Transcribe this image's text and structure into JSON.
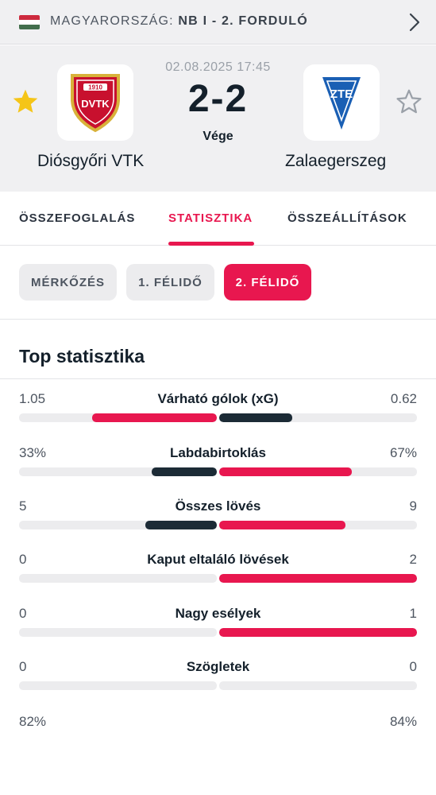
{
  "league": {
    "country": "MAGYARORSZÁG:",
    "competition": "NB I - 2. FORDULÓ",
    "flag_colors": [
      "#cd2a3e",
      "#ffffff",
      "#436f4d"
    ]
  },
  "match": {
    "datetime": "02.08.2025 17:45",
    "score": "2-2",
    "status": "Vége",
    "home": {
      "name": "Diósgyőri VTK",
      "crest_year": "1910",
      "crest_text": "DVTK",
      "favorite": true
    },
    "away": {
      "name": "Zalaegerszeg",
      "crest_text": "ZTE",
      "favorite": false
    }
  },
  "tabs": [
    {
      "label": "ÖSSZEFOGLALÁS",
      "active": false
    },
    {
      "label": "STATISZTIKA",
      "active": true
    },
    {
      "label": "ÖSSZEÁLLÍTÁSOK",
      "active": false
    }
  ],
  "periods": [
    {
      "label": "MÉRKŐZÉS",
      "active": false
    },
    {
      "label": "1. FÉLIDŐ",
      "active": false
    },
    {
      "label": "2. FÉLIDŐ",
      "active": true
    }
  ],
  "section_title": "Top statisztika",
  "colors": {
    "accent": "#e8174f",
    "dark": "#1c2b36",
    "track": "#ececee"
  },
  "stats": [
    {
      "label": "Várható gólok (xG)",
      "home": "1.05",
      "away": "0.62",
      "home_fill": 0.63,
      "away_fill": 0.37,
      "home_color": "#e8174f",
      "away_color": "#1c2b36"
    },
    {
      "label": "Labdabirtoklás",
      "home": "33%",
      "away": "67%",
      "home_fill": 0.33,
      "away_fill": 0.67,
      "home_color": "#1c2b36",
      "away_color": "#e8174f"
    },
    {
      "label": "Összes lövés",
      "home": "5",
      "away": "9",
      "home_fill": 0.36,
      "away_fill": 0.64,
      "home_color": "#1c2b36",
      "away_color": "#e8174f"
    },
    {
      "label": "Kaput eltaláló lövések",
      "home": "0",
      "away": "2",
      "home_fill": 0.0,
      "away_fill": 1.0,
      "home_color": "#1c2b36",
      "away_color": "#e8174f"
    },
    {
      "label": "Nagy esélyek",
      "home": "0",
      "away": "1",
      "home_fill": 0.0,
      "away_fill": 1.0,
      "home_color": "#1c2b36",
      "away_color": "#e8174f"
    },
    {
      "label": "Szögletek",
      "home": "0",
      "away": "0",
      "home_fill": 0.0,
      "away_fill": 0.0,
      "home_color": "#1c2b36",
      "away_color": "#e8174f"
    }
  ],
  "partial_row": {
    "home": "82%",
    "away": "84%"
  }
}
